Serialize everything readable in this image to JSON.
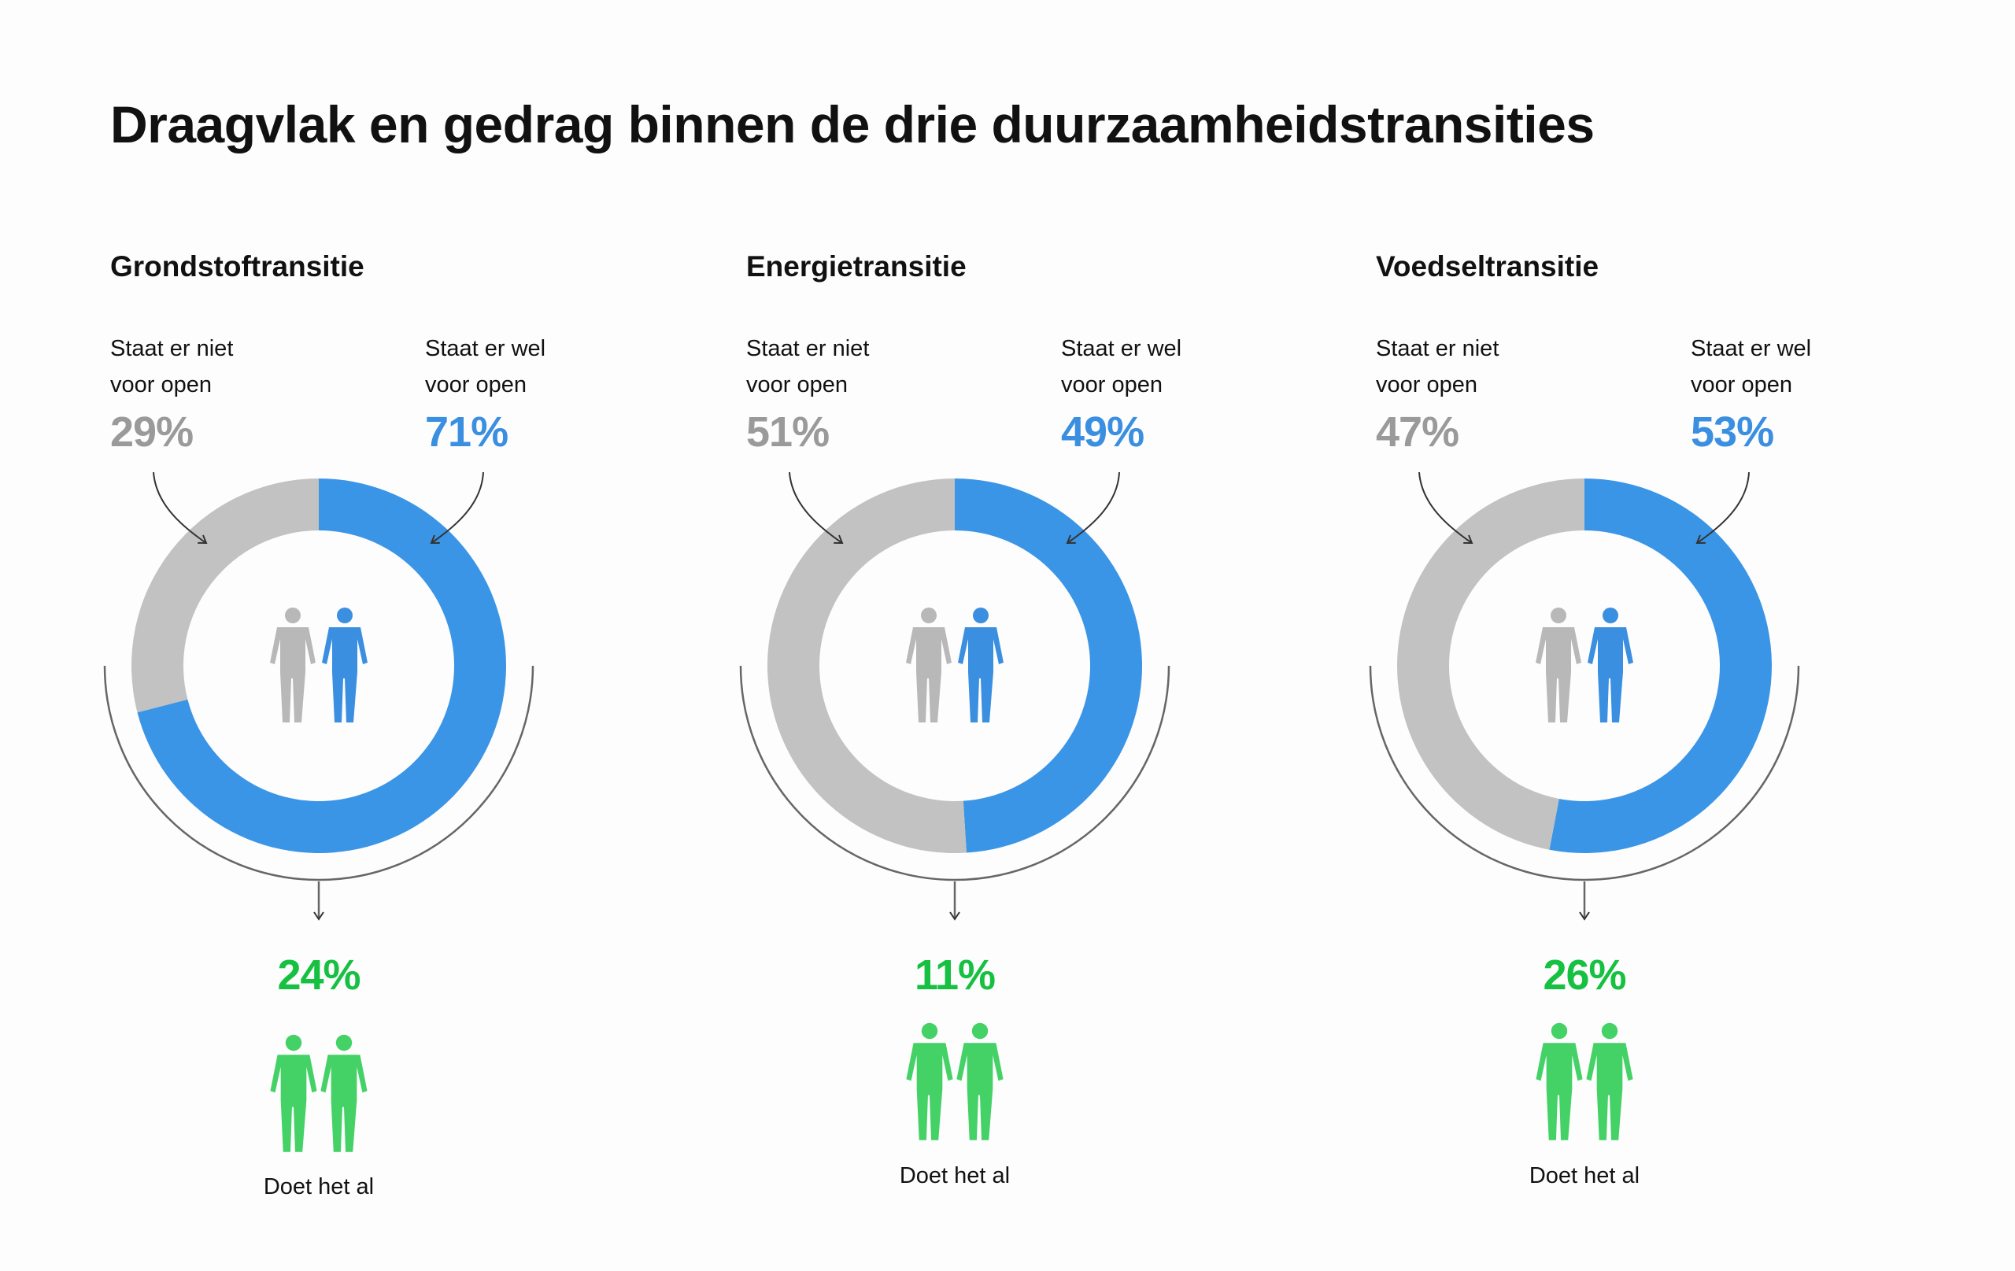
{
  "title": "Draagvlak en gedrag binnen de drie duurzaamheidstransities",
  "labels": {
    "not_open_line1": "Staat er niet",
    "not_open_line2": "voor open",
    "open_line1": "Staat er wel",
    "open_line2": "voor open",
    "doing": "Doet het al"
  },
  "colors": {
    "not_open": "#c2c2c2",
    "open": "#3b95e6",
    "doing": "#44d166",
    "doing_text": "#16c040",
    "not_open_text": "#9a9a9a",
    "open_text": "#3b8fe0",
    "arc": "#666666",
    "arrow": "#333333",
    "person_gray": "#b8b8b8",
    "person_blue": "#3b8fe0"
  },
  "icons": [
    "person-icon",
    "curved-arrow-icon",
    "down-arrow-icon"
  ],
  "chart_data": [
    {
      "type": "pie",
      "title": "Grondstoftransitie",
      "categories": [
        "Staat er niet voor open",
        "Staat er wel voor open"
      ],
      "values": [
        29,
        71
      ],
      "doing": 24,
      "labels": {
        "not_open_pct": "29%",
        "open_pct": "71%",
        "doing_pct": "24%"
      }
    },
    {
      "type": "pie",
      "title": "Energietransitie",
      "categories": [
        "Staat er niet voor open",
        "Staat er wel voor open"
      ],
      "values": [
        51,
        49
      ],
      "doing": 11,
      "labels": {
        "not_open_pct": "51%",
        "open_pct": "49%",
        "doing_pct": "11%"
      }
    },
    {
      "type": "pie",
      "title": "Voedseltransitie",
      "categories": [
        "Staat er niet voor open",
        "Staat er wel voor open"
      ],
      "values": [
        47,
        53
      ],
      "doing": 26,
      "labels": {
        "not_open_pct": "47%",
        "open_pct": "53%",
        "doing_pct": "26%"
      }
    }
  ]
}
